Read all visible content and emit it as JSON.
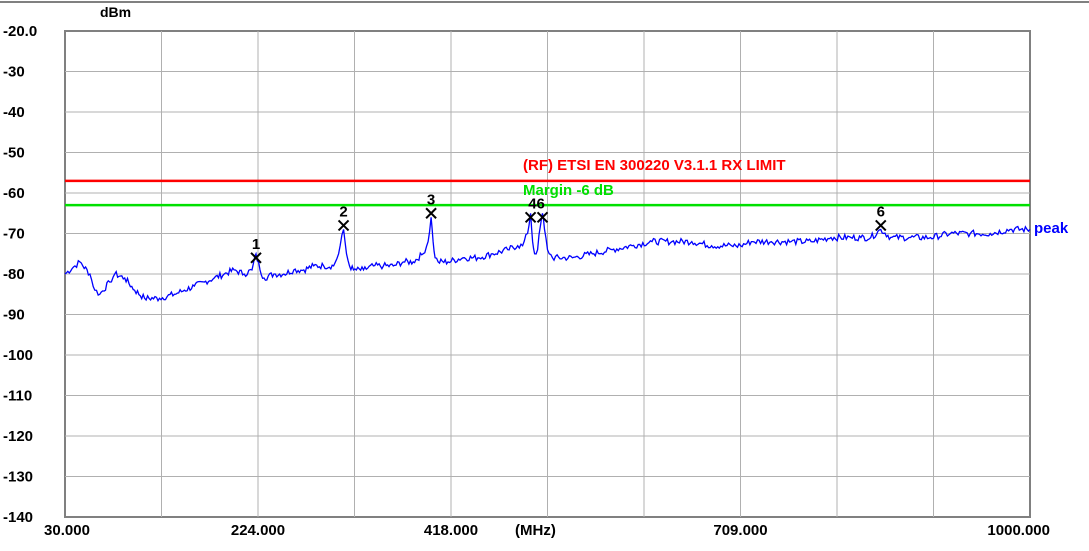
{
  "chart_data": {
    "type": "line",
    "ylabel": "dBm",
    "xunit": "(MHz)",
    "xlim": [
      30,
      1000
    ],
    "ylim": [
      -140,
      -20
    ],
    "grid": true,
    "x_ticks": [
      30,
      224,
      418,
      709,
      1000
    ],
    "x_tick_labels": [
      "30.000",
      "224.000",
      "418.000",
      "709.000",
      "1000.000"
    ],
    "y_ticks": [
      -20,
      -30,
      -40,
      -50,
      -60,
      -70,
      -80,
      -90,
      -100,
      -110,
      -120,
      -130,
      -140
    ],
    "y_tick_labels": [
      "-20.0",
      "-30",
      "-40",
      "-50",
      "-60",
      "-70",
      "-80",
      "-90",
      "-100",
      "-110",
      "-120",
      "-130",
      "-140"
    ],
    "limit_line": {
      "label": "(RF) ETSI EN 300220 V3.1.1 RX LIMIT",
      "value": -57,
      "color": "#ff0000"
    },
    "margin_line": {
      "label": "Margin -6 dB",
      "value": -63,
      "color": "#00e000"
    },
    "series": [
      {
        "name": "peak",
        "color": "#0000ff",
        "x": [
          30,
          40,
          45,
          55,
          60,
          65,
          75,
          80,
          90,
          100,
          110,
          125,
          140,
          150,
          160,
          170,
          180,
          190,
          200,
          210,
          218,
          222,
          226,
          230,
          240,
          250,
          260,
          270,
          280,
          290,
          300,
          305,
          310,
          313,
          316,
          320,
          330,
          340,
          350,
          360,
          370,
          380,
          390,
          395,
          398,
          400,
          402,
          405,
          415,
          430,
          445,
          460,
          475,
          485,
          490,
          495,
          498,
          500,
          502,
          505,
          508,
          510,
          512,
          515,
          520,
          540,
          560,
          580,
          600,
          620,
          640,
          660,
          680,
          700,
          709,
          720,
          740,
          760,
          780,
          800,
          820,
          830,
          840,
          850,
          860,
          880,
          900,
          920,
          940,
          960,
          980,
          1000
        ],
        "y": [
          -80,
          -78,
          -77,
          -80,
          -84,
          -85,
          -82,
          -80,
          -81,
          -84,
          -86,
          -86,
          -85,
          -84,
          -83,
          -82,
          -81,
          -80,
          -79,
          -80,
          -79,
          -75,
          -79,
          -81,
          -80,
          -80,
          -79,
          -79,
          -78,
          -78,
          -78,
          -75,
          -69,
          -75,
          -78,
          -79,
          -79,
          -78,
          -78,
          -78,
          -77,
          -77,
          -75,
          -72,
          -66,
          -72,
          -76,
          -77,
          -77,
          -76,
          -76,
          -75,
          -74,
          -73,
          -73,
          -70,
          -65,
          -72,
          -75,
          -74,
          -68,
          -65,
          -69,
          -74,
          -76,
          -76,
          -75,
          -74,
          -73,
          -72,
          -72,
          -72,
          -73,
          -73,
          -73,
          -72,
          -72,
          -72,
          -72,
          -71,
          -71,
          -71,
          -71,
          -69,
          -71,
          -71,
          -71,
          -70,
          -70,
          -70,
          -69,
          -69
        ]
      }
    ],
    "markers": [
      {
        "label": "1",
        "x": 222,
        "y": -76
      },
      {
        "label": "2",
        "x": 310,
        "y": -68
      },
      {
        "label": "3",
        "x": 398,
        "y": -65
      },
      {
        "label": "4",
        "x": 498,
        "y": -66
      },
      {
        "label": "5",
        "x": 510,
        "y": -66
      },
      {
        "label": "6",
        "x": 850,
        "y": -68
      }
    ],
    "marker_group_label": "46"
  }
}
